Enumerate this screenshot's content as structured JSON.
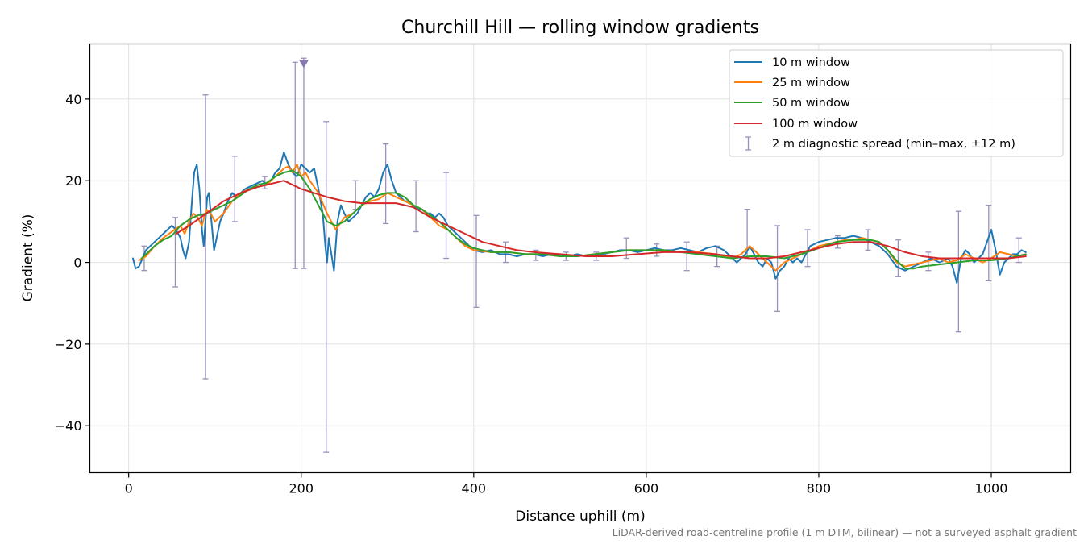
{
  "chart_data": {
    "type": "line",
    "title": "Churchill Hill — rolling window gradients",
    "xlabel": "Distance uphill (m)",
    "ylabel": "Gradient (%)",
    "footnote": "LiDAR-derived road-centreline profile (1 m DTM, bilinear) — not a surveyed asphalt gradient",
    "xlim": [
      -45,
      1092
    ],
    "ylim": [
      -51.5,
      53.5
    ],
    "xticks": [
      0,
      200,
      400,
      600,
      800,
      1000
    ],
    "yticks": [
      -40,
      -20,
      0,
      20,
      40
    ],
    "grid": true,
    "legend_position": "top-right",
    "series": [
      {
        "name": "10 m window",
        "color": "#1f77b4",
        "x": [
          5,
          8,
          12,
          16,
          20,
          25,
          30,
          35,
          40,
          45,
          50,
          55,
          60,
          63,
          66,
          70,
          73,
          76,
          79,
          82,
          85,
          87,
          89,
          91,
          93,
          96,
          99,
          102,
          106,
          110,
          115,
          120,
          125,
          130,
          135,
          140,
          145,
          150,
          155,
          160,
          165,
          170,
          175,
          180,
          185,
          190,
          195,
          200,
          205,
          210,
          215,
          220,
          225,
          228,
          230,
          232,
          235,
          238,
          242,
          246,
          250,
          255,
          260,
          265,
          270,
          275,
          280,
          285,
          290,
          295,
          300,
          305,
          310,
          315,
          320,
          325,
          330,
          335,
          340,
          345,
          350,
          355,
          360,
          365,
          370,
          375,
          380,
          385,
          390,
          395,
          400,
          410,
          420,
          430,
          440,
          450,
          460,
          470,
          480,
          490,
          500,
          510,
          520,
          530,
          540,
          550,
          560,
          570,
          580,
          590,
          600,
          610,
          620,
          630,
          640,
          650,
          660,
          670,
          680,
          690,
          700,
          705,
          710,
          715,
          720,
          725,
          730,
          735,
          740,
          745,
          750,
          755,
          760,
          765,
          770,
          775,
          780,
          785,
          790,
          800,
          810,
          820,
          830,
          840,
          850,
          860,
          870,
          880,
          890,
          900,
          910,
          920,
          930,
          940,
          950,
          955,
          960,
          965,
          970,
          975,
          980,
          985,
          990,
          995,
          1000,
          1005,
          1010,
          1015,
          1020,
          1025,
          1030,
          1035,
          1040
        ],
        "y": [
          1,
          -1.5,
          -1,
          1,
          3,
          4,
          5,
          6,
          7,
          8,
          9,
          8,
          6,
          3,
          1,
          5,
          14,
          22,
          24,
          18,
          8,
          4,
          10,
          16,
          17,
          10,
          3,
          6,
          10,
          12,
          15,
          17,
          16,
          17,
          18,
          18.5,
          19,
          19.5,
          20,
          19,
          20,
          22,
          23,
          27,
          24,
          22,
          21,
          24,
          23,
          22,
          23,
          18,
          12,
          4,
          0,
          6,
          2,
          -2,
          10,
          14,
          12,
          10,
          11,
          12,
          14,
          16,
          17,
          16,
          18,
          22,
          24,
          20,
          17,
          16,
          15,
          15,
          14,
          13,
          13,
          12,
          12,
          11,
          12,
          11,
          9,
          8,
          7,
          6,
          5,
          4,
          3,
          2.5,
          3,
          2,
          2,
          1.5,
          2,
          2,
          1.5,
          2,
          2,
          1.5,
          2,
          1.5,
          1.5,
          2,
          2.5,
          3,
          3,
          2.5,
          3,
          3.5,
          3,
          3,
          3.5,
          3,
          2.5,
          3.5,
          4,
          3,
          1,
          0,
          1,
          2,
          4,
          2,
          0,
          -1,
          1,
          0,
          -4,
          -2,
          -1,
          1,
          0,
          1,
          0,
          2,
          4,
          5,
          5.5,
          6,
          6,
          6.5,
          6,
          5,
          4,
          2,
          -1,
          -2,
          -1,
          0,
          1,
          0,
          1,
          -1,
          -5,
          1,
          3,
          2,
          0,
          1,
          2,
          5,
          8,
          3,
          -3,
          0,
          1,
          2,
          2,
          3,
          2.5
        ]
      },
      {
        "name": "25 m window",
        "color": "#ff7f0e",
        "x": [
          12,
          20,
          30,
          40,
          50,
          60,
          65,
          70,
          75,
          80,
          85,
          90,
          95,
          100,
          110,
          120,
          130,
          140,
          150,
          160,
          170,
          180,
          185,
          190,
          195,
          200,
          205,
          210,
          220,
          230,
          240,
          250,
          260,
          270,
          280,
          290,
          300,
          310,
          320,
          330,
          340,
          350,
          360,
          370,
          380,
          390,
          400,
          420,
          440,
          460,
          480,
          500,
          520,
          540,
          560,
          580,
          600,
          620,
          640,
          660,
          680,
          700,
          710,
          720,
          730,
          740,
          750,
          760,
          770,
          780,
          790,
          800,
          810,
          820,
          830,
          840,
          850,
          860,
          870,
          880,
          890,
          900,
          910,
          920,
          930,
          940,
          950,
          960,
          970,
          980,
          990,
          1000,
          1010,
          1020,
          1030,
          1040
        ],
        "y": [
          0.5,
          1.5,
          4,
          6,
          7.5,
          9,
          7,
          10,
          12,
          11,
          9,
          13,
          12,
          10,
          12,
          15,
          17,
          18,
          18.5,
          19,
          21,
          23,
          23.5,
          22,
          24,
          21,
          22,
          20,
          17,
          12,
          8,
          11,
          12,
          14,
          15,
          15.5,
          17,
          16,
          15,
          14,
          13,
          11,
          9,
          8,
          6,
          4,
          3,
          2.5,
          2.5,
          2,
          2,
          1.5,
          1.5,
          2,
          2.5,
          3,
          3,
          3,
          2.5,
          2.5,
          2,
          1,
          2,
          4,
          2,
          0,
          -2,
          0,
          1,
          2,
          3,
          4,
          4.5,
          5,
          5.5,
          5.5,
          6,
          5.5,
          5,
          3,
          0,
          -1,
          -0.5,
          0,
          0.5,
          1,
          0,
          0.5,
          2,
          1,
          0,
          1,
          2.5,
          2,
          1.5,
          2
        ]
      },
      {
        "name": "50 m window",
        "color": "#2ca02c",
        "x": [
          15,
          20,
          30,
          40,
          50,
          60,
          70,
          80,
          90,
          100,
          110,
          120,
          130,
          140,
          150,
          160,
          170,
          175,
          180,
          190,
          200,
          210,
          220,
          230,
          240,
          250,
          260,
          270,
          280,
          290,
          300,
          310,
          320,
          330,
          340,
          350,
          360,
          370,
          380,
          390,
          400,
          420,
          440,
          460,
          480,
          500,
          520,
          540,
          560,
          580,
          600,
          620,
          640,
          660,
          680,
          700,
          720,
          740,
          760,
          780,
          800,
          820,
          840,
          860,
          870,
          880,
          890,
          900,
          910,
          920,
          940,
          960,
          980,
          1000,
          1020,
          1040
        ],
        "y": [
          1,
          2,
          4,
          5.5,
          6.5,
          9,
          10.5,
          11.5,
          12,
          13,
          14,
          15,
          16.5,
          18,
          19,
          19.5,
          21,
          21.5,
          22,
          22.5,
          21,
          18,
          14,
          10,
          9,
          10,
          12,
          14,
          15.5,
          16.5,
          17,
          17,
          16,
          14,
          13,
          11.5,
          10,
          8,
          6,
          4.5,
          3.5,
          2.5,
          2.5,
          2,
          2,
          1.5,
          1.5,
          2,
          2.5,
          3,
          3,
          3,
          2.5,
          2,
          1.5,
          1,
          1.5,
          1.5,
          1,
          2,
          3.5,
          5,
          5.5,
          5.5,
          5,
          3,
          0.5,
          -1.5,
          -1.5,
          -1,
          -0.5,
          0,
          0.5,
          0.5,
          1,
          2
        ]
      },
      {
        "name": "100 m window",
        "color": "#d62728",
        "x": [
          55,
          70,
          90,
          110,
          130,
          150,
          170,
          180,
          190,
          200,
          215,
          230,
          250,
          270,
          290,
          310,
          330,
          350,
          370,
          390,
          410,
          430,
          450,
          470,
          500,
          530,
          560,
          590,
          620,
          650,
          680,
          700,
          720,
          740,
          760,
          780,
          800,
          820,
          840,
          860,
          880,
          900,
          920,
          940,
          960,
          980,
          1000,
          1020,
          1040
        ],
        "y": [
          7,
          9,
          12,
          15,
          17,
          18.5,
          19.5,
          20,
          19,
          18,
          17,
          16,
          15,
          14.5,
          14.5,
          14.5,
          13.5,
          11,
          9,
          7,
          5,
          4,
          3,
          2.5,
          2,
          1.5,
          1.5,
          2,
          2.5,
          2.5,
          2,
          1.5,
          1,
          1,
          1.5,
          2.5,
          3.5,
          4.5,
          5,
          5,
          4,
          2.5,
          1.5,
          1,
          1,
          1,
          1,
          1,
          1.5
        ]
      }
    ],
    "errorbars": {
      "name": "2 m diagnostic spread (min–max, ±12 m)",
      "color": "#9990bb",
      "points": [
        {
          "x": 18,
          "low": -2,
          "high": 4
        },
        {
          "x": 54,
          "low": -6,
          "high": 11
        },
        {
          "x": 89,
          "low": -28.5,
          "high": 41
        },
        {
          "x": 123,
          "low": 10,
          "high": 26
        },
        {
          "x": 158,
          "low": 18,
          "high": 21
        },
        {
          "x": 193,
          "low": -1.5,
          "high": 49
        },
        {
          "x": 203,
          "low": -1.5,
          "high": 50
        },
        {
          "x": 229,
          "low": -46.5,
          "high": 34.5
        },
        {
          "x": 263,
          "low": 13,
          "high": 20
        },
        {
          "x": 298,
          "low": 9.5,
          "high": 29
        },
        {
          "x": 333,
          "low": 7.5,
          "high": 20
        },
        {
          "x": 368,
          "low": 1,
          "high": 22
        },
        {
          "x": 403,
          "low": -11,
          "high": 11.5
        },
        {
          "x": 437,
          "low": 0,
          "high": 5
        },
        {
          "x": 472,
          "low": 0.5,
          "high": 3
        },
        {
          "x": 507,
          "low": 0.5,
          "high": 2.5
        },
        {
          "x": 542,
          "low": 0.5,
          "high": 2.5
        },
        {
          "x": 577,
          "low": 1,
          "high": 6
        },
        {
          "x": 612,
          "low": 1.5,
          "high": 4.5
        },
        {
          "x": 647,
          "low": -2,
          "high": 5
        },
        {
          "x": 682,
          "low": -1,
          "high": 4
        },
        {
          "x": 717,
          "low": 1,
          "high": 13
        },
        {
          "x": 752,
          "low": -12,
          "high": 9
        },
        {
          "x": 787,
          "low": -1,
          "high": 8
        },
        {
          "x": 822,
          "low": 3.5,
          "high": 6.5
        },
        {
          "x": 857,
          "low": 3,
          "high": 8
        },
        {
          "x": 892,
          "low": -3.5,
          "high": 5.5
        },
        {
          "x": 927,
          "low": -2,
          "high": 2.5
        },
        {
          "x": 962,
          "low": -17,
          "high": 12.5
        },
        {
          "x": 997,
          "low": -4.5,
          "high": 14
        },
        {
          "x": 1032,
          "low": 0,
          "high": 6
        }
      ],
      "overflow_marker_x": 203
    }
  }
}
